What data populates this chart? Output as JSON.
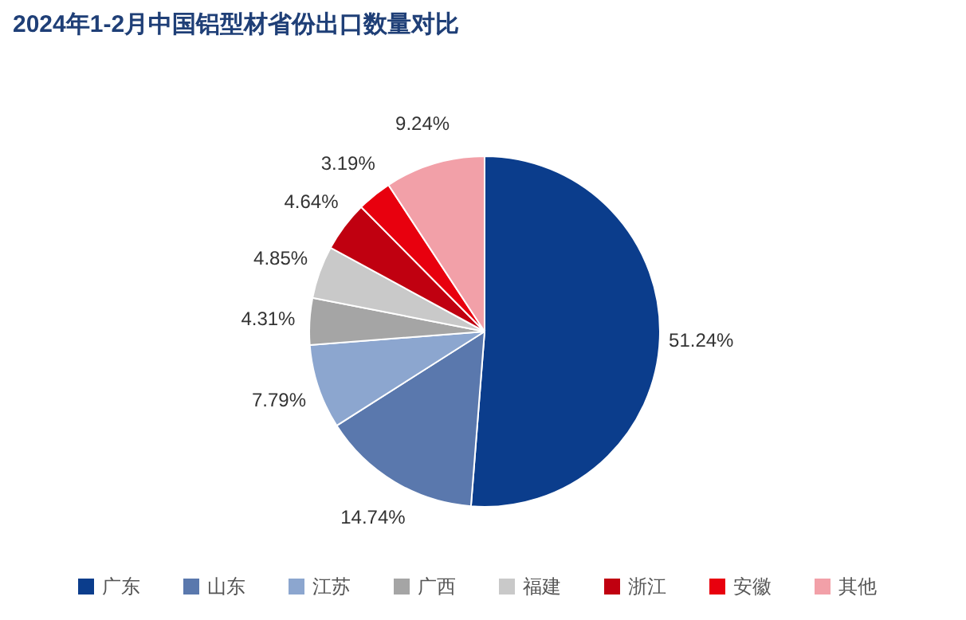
{
  "chart_data": {
    "type": "pie",
    "title": "2024年1-2月中国铝型材省份出口数量对比",
    "categories": [
      "广东",
      "山东",
      "江苏",
      "广西",
      "福建",
      "浙江",
      "安徽",
      "其他"
    ],
    "values": [
      51.24,
      14.74,
      7.79,
      4.31,
      4.85,
      4.64,
      3.19,
      9.24
    ],
    "colors": [
      "#0b3d8c",
      "#5a78ad",
      "#8ca6cf",
      "#a5a5a5",
      "#c9c9c9",
      "#c00010",
      "#e8000e",
      "#f2a0a8"
    ],
    "value_labels": [
      "51.24%",
      "14.74%",
      "7.79%",
      "4.31%",
      "4.85%",
      "4.64%",
      "3.19%",
      "9.24%"
    ],
    "legend": "bottom"
  }
}
